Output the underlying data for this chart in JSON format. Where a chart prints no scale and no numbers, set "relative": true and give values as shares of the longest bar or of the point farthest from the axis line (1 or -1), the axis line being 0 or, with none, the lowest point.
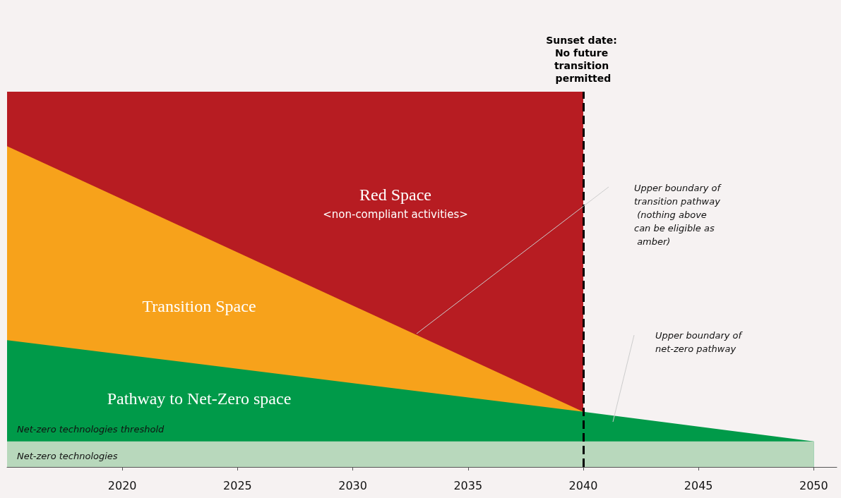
{
  "chart_data": {
    "type": "area",
    "relative": true,
    "grid": false,
    "x": [
      2015,
      2040,
      2050
    ],
    "xlim": [
      2015,
      2051
    ],
    "xticks": [
      2020,
      2025,
      2030,
      2035,
      2040,
      2045,
      2050
    ],
    "series": [
      {
        "color": "#b71c22",
        "values": [
          1,
          1,
          null
        ]
      },
      {
        "color": "#f7a21b",
        "values": [
          0.855,
          0.147,
          null
        ]
      },
      {
        "color": "#009a49",
        "values": [
          0.338,
          0.147,
          0.068
        ]
      },
      {
        "color": "#b8d8bc",
        "values": [
          0.068,
          0.068,
          0.068
        ]
      }
    ],
    "ref_lines": [
      {
        "axis": "x",
        "value": 2040,
        "label": "Sunset date: No future transition permitted",
        "color": "#000000",
        "line_style": "dashed"
      }
    ],
    "annotations": [
      "Red Space",
      "<non-compliant activities>",
      "Transition Space",
      "Pathway to Net-Zero space",
      "Net-zero technologies threshold",
      "Net-zero technologies",
      "Upper boundary of transition pathway (nothing above can be eligible as amber)",
      "Upper boundary of net-zero pathway"
    ]
  }
}
